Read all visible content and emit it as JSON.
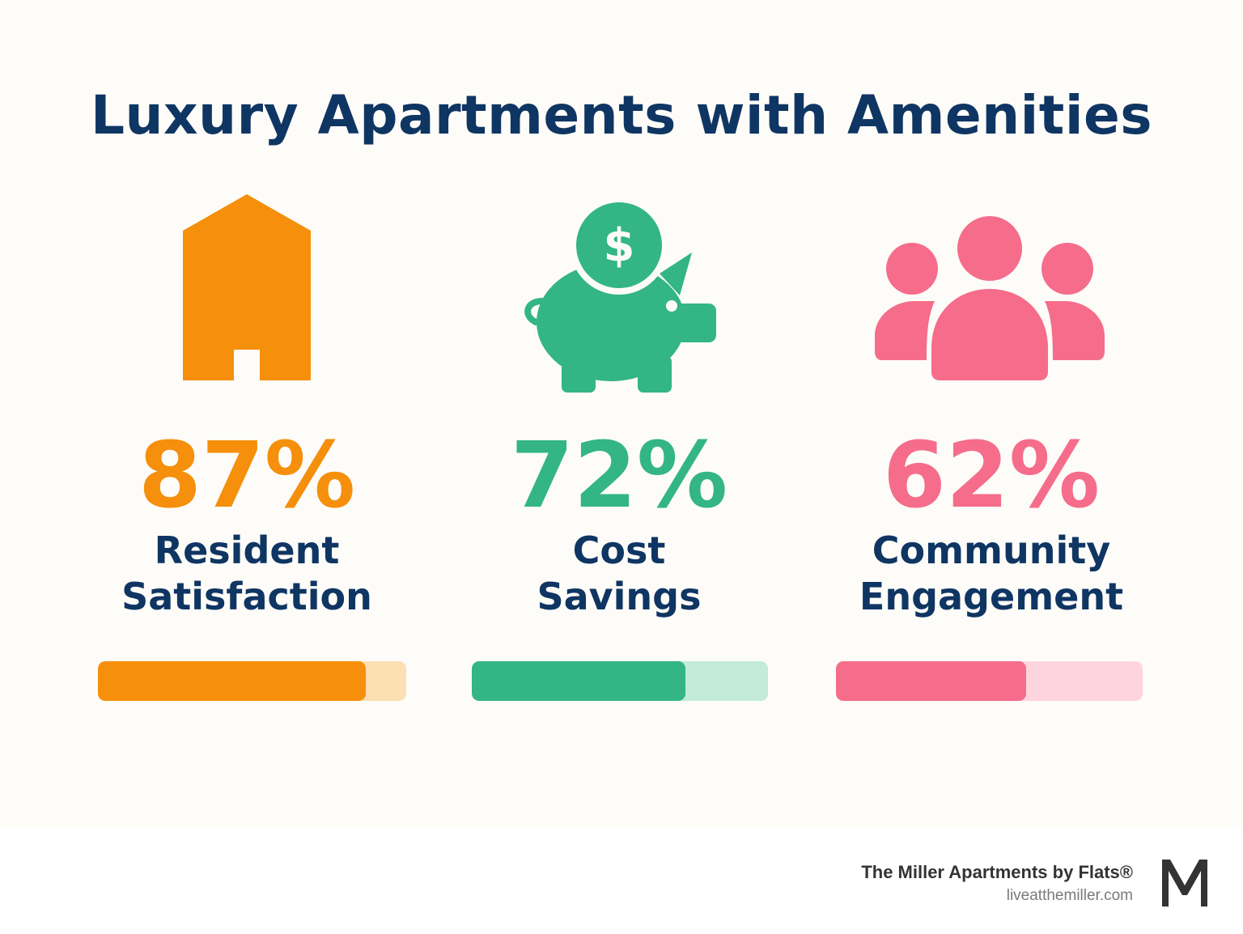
{
  "title": "Luxury Apartments with Amenities",
  "stats": [
    {
      "icon": "building-icon",
      "percent_text": "87%",
      "percent_value": 0.87,
      "label_line1": "Resident",
      "label_line2": "Satisfaction",
      "color": "#f58f0c",
      "track_color": "#fddfb4"
    },
    {
      "icon": "piggy-bank-icon",
      "percent_text": "72%",
      "percent_value": 0.72,
      "label_line1": "Cost",
      "label_line2": "Savings",
      "color": "#33b587",
      "track_color": "#c3eadb"
    },
    {
      "icon": "people-group-icon",
      "percent_text": "62%",
      "percent_value": 0.62,
      "label_line1": "Community",
      "label_line2": "Engagement",
      "color": "#f56d8a",
      "track_color": "#fed5df"
    }
  ],
  "footer": {
    "brand": "The Miller Apartments by Flats®",
    "url": "liveatthemiller.com",
    "logo_letter": "M"
  }
}
